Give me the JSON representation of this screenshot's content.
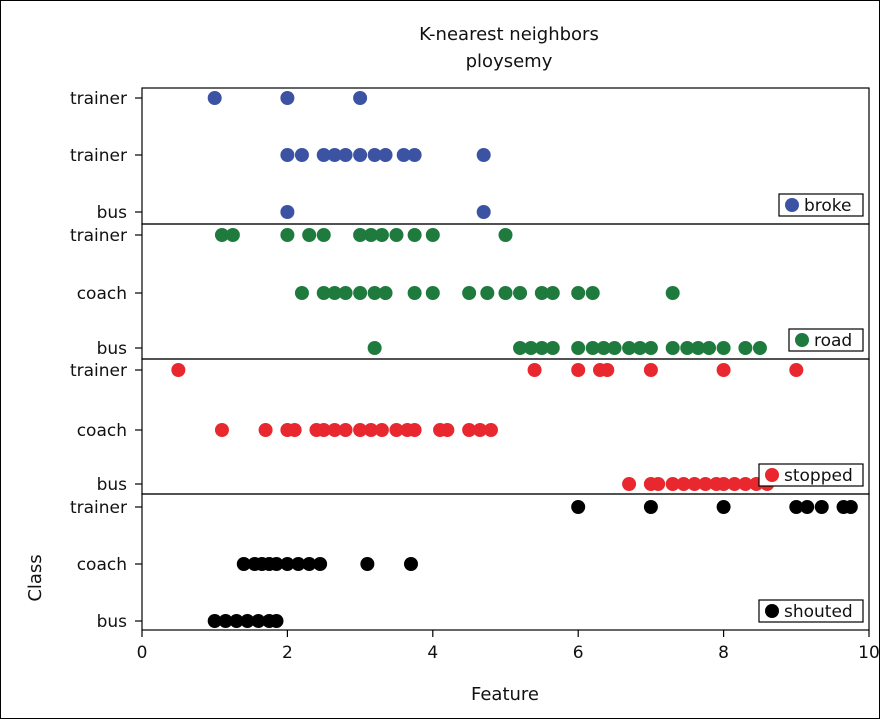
{
  "chart_data": {
    "type": "scatter",
    "title": "K-nearest neighbors",
    "subtitle": "ploysemy",
    "xlabel": "Feature",
    "ylabel": "Class",
    "xlim": [
      0,
      10
    ],
    "xticks": [
      0,
      2,
      4,
      6,
      8,
      10
    ],
    "grid": false,
    "legend_placement": "bottom-right of each panel",
    "panels": [
      {
        "legend": "broke",
        "color": "#3c53a3",
        "class_labels": [
          "trainer",
          "trainer",
          "bus"
        ],
        "rows": [
          [
            1.0,
            2.0,
            3.0
          ],
          [
            2.0,
            2.2,
            2.5,
            2.65,
            2.8,
            3.0,
            3.2,
            3.35,
            3.6,
            3.75,
            4.7
          ],
          [
            2.0,
            4.7
          ]
        ]
      },
      {
        "legend": "road",
        "color": "#1f7a3e",
        "class_labels": [
          "trainer",
          "coach",
          "bus"
        ],
        "rows": [
          [
            1.1,
            1.25,
            2.0,
            2.3,
            2.5,
            3.0,
            3.15,
            3.3,
            3.5,
            3.75,
            4.0,
            5.0
          ],
          [
            2.2,
            2.5,
            2.65,
            2.8,
            3.0,
            3.2,
            3.35,
            3.75,
            4.0,
            4.5,
            4.75,
            5.0,
            5.2,
            5.5,
            5.65,
            6.0,
            6.2,
            7.3
          ],
          [
            3.2,
            5.2,
            5.35,
            5.5,
            5.65,
            6.0,
            6.2,
            6.35,
            6.5,
            6.7,
            6.85,
            7.0,
            7.3,
            7.5,
            7.65,
            7.8,
            8.0,
            8.3,
            8.5
          ]
        ]
      },
      {
        "legend": "stopped",
        "color": "#e8282e",
        "class_labels": [
          "trainer",
          "coach",
          "bus"
        ],
        "rows": [
          [
            0.5,
            5.4,
            6.0,
            6.3,
            6.4,
            7.0,
            8.0,
            9.0
          ],
          [
            1.1,
            1.7,
            2.0,
            2.1,
            2.4,
            2.5,
            2.65,
            2.8,
            3.0,
            3.15,
            3.3,
            3.5,
            3.65,
            3.75,
            4.1,
            4.2,
            4.5,
            4.65,
            4.8
          ],
          [
            6.7,
            7.0,
            7.1,
            7.3,
            7.45,
            7.6,
            7.75,
            7.9,
            8.0,
            8.15,
            8.3,
            8.45,
            8.6
          ]
        ]
      },
      {
        "legend": "shouted",
        "color": "#000000",
        "class_labels": [
          "trainer",
          "coach",
          "bus"
        ],
        "rows": [
          [
            6.0,
            7.0,
            8.0,
            9.0,
            9.15,
            9.35,
            9.65,
            9.75
          ],
          [
            1.4,
            1.55,
            1.65,
            1.75,
            1.85,
            2.0,
            2.15,
            2.3,
            2.45,
            3.1,
            3.7
          ],
          [
            1.0,
            1.15,
            1.3,
            1.45,
            1.6,
            1.75,
            1.85
          ]
        ]
      }
    ]
  }
}
